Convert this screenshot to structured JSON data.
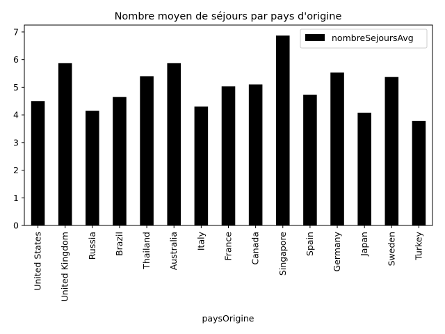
{
  "chart_data": {
    "type": "bar",
    "title": "Nombre moyen de séjours par pays d'origine",
    "xlabel": "paysOrigine",
    "ylabel": "",
    "categories": [
      "United States",
      "United Kingdom",
      "Russia",
      "Brazil",
      "Thailand",
      "Australia",
      "Italy",
      "France",
      "Canada",
      "Singapore",
      "Spain",
      "Germany",
      "Japan",
      "Sweden",
      "Turkey"
    ],
    "series": [
      {
        "name": "nombreSejoursAvg",
        "color": "#000000",
        "values": [
          4.5,
          5.87,
          4.15,
          4.65,
          5.4,
          5.87,
          4.3,
          5.03,
          5.1,
          6.87,
          4.73,
          5.53,
          4.08,
          5.37,
          3.78
        ]
      }
    ],
    "ylim": [
      0,
      7.25
    ],
    "yticks": [
      0,
      1,
      2,
      3,
      4,
      5,
      6,
      7
    ],
    "grid": false,
    "legend_position": "top-right"
  }
}
